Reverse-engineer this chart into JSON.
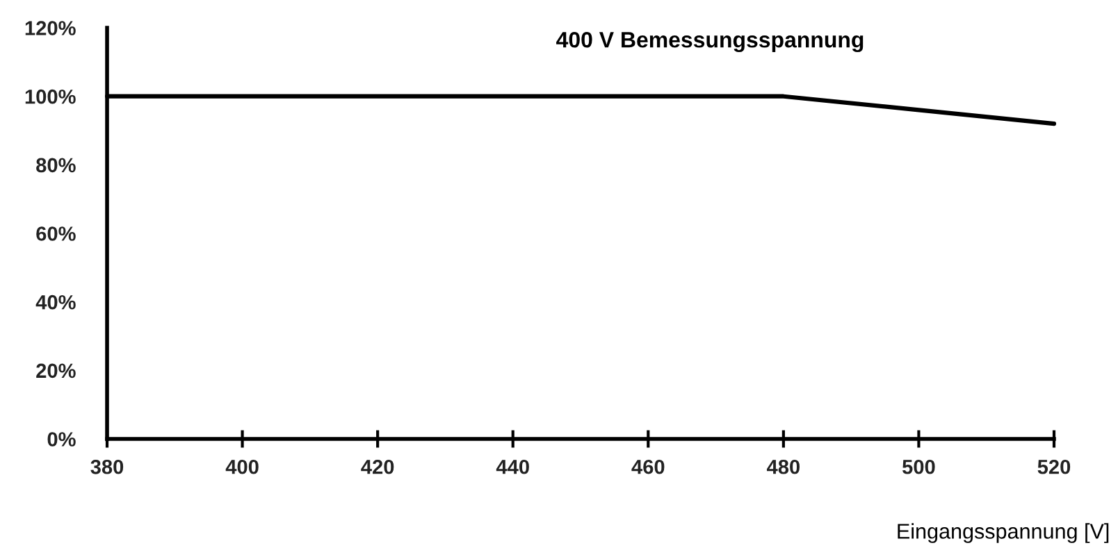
{
  "chart_data": {
    "type": "line",
    "title": "400 V Bemessungsspannung",
    "xlabel": "Eingangsspannung [V]",
    "x": [
      380,
      480,
      500,
      520
    ],
    "series": [
      {
        "color": "#000000",
        "values": [
          100,
          100,
          96,
          92
        ]
      }
    ],
    "xlim": [
      380,
      520
    ],
    "xticks": [
      380,
      400,
      420,
      440,
      460,
      480,
      500,
      520
    ],
    "ylim": [
      0,
      120
    ],
    "yticks": [
      {
        "value": 0,
        "label": "0%"
      },
      {
        "value": 20,
        "label": "20%"
      },
      {
        "value": 40,
        "label": "40%"
      },
      {
        "value": 60,
        "label": "60%"
      },
      {
        "value": 80,
        "label": "80%"
      },
      {
        "value": 100,
        "label": "100%"
      },
      {
        "value": 120,
        "label": "120%"
      }
    ],
    "grid": false,
    "marker": "none",
    "line_style": "solid"
  }
}
